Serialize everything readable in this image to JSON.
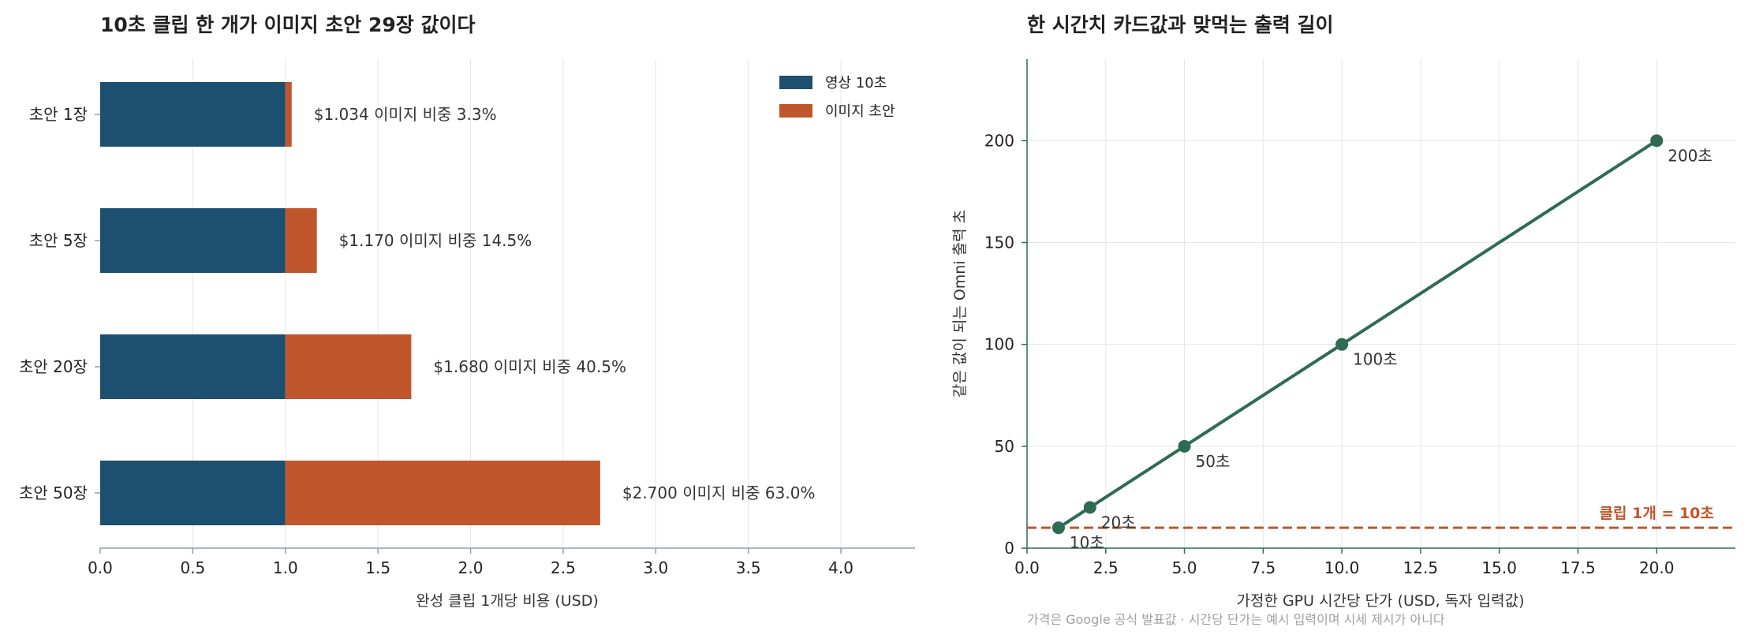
{
  "colors": {
    "video": "#1d4f70",
    "image": "#c0562b",
    "line": "#2e6b52",
    "grid": "#e6e6e6",
    "axis": "#8aa0b0",
    "reference": "#c0562b"
  },
  "chart_data": [
    {
      "type": "bar",
      "orientation": "horizontal",
      "stacked": true,
      "title": "10초 클립 한 개가 이미지 초안 29장 값이다",
      "xlabel": "완성 클립 1개당 비용 (USD)",
      "ylabel": "",
      "xlim": [
        0,
        4.4
      ],
      "xticks": [
        "0.0",
        "0.5",
        "1.0",
        "1.5",
        "2.0",
        "2.5",
        "3.0",
        "3.5",
        "4.0"
      ],
      "categories": [
        "초안 1장",
        "초안 5장",
        "초안 20장",
        "초안 50장"
      ],
      "series": [
        {
          "name": "영상 10초",
          "values": [
            1.0,
            1.0,
            1.0,
            1.0
          ]
        },
        {
          "name": "이미지 초안",
          "values": [
            0.034,
            0.17,
            0.68,
            1.7
          ]
        }
      ],
      "value_labels": [
        "$1.034   이미지 비중 3.3%",
        "$1.170   이미지 비중 14.5%",
        "$1.680   이미지 비중 40.5%",
        "$2.700   이미지 비중 63.0%"
      ],
      "totals": [
        1.034,
        1.17,
        1.68,
        2.7
      ],
      "legend_position": "top-right",
      "grid": "x"
    },
    {
      "type": "line",
      "title": "한 시간치 카드값과 맞먹는 출력 길이",
      "xlabel": "가정한 GPU 시간당 단가 (USD, 독자 입력값)",
      "ylabel": "같은 값이 되는 Omni 출력 초",
      "xlim": [
        0,
        22.5
      ],
      "ylim": [
        0,
        240
      ],
      "xticks": [
        "0.0",
        "2.5",
        "5.0",
        "7.5",
        "10.0",
        "12.5",
        "15.0",
        "17.5",
        "20.0"
      ],
      "yticks": [
        "0",
        "50",
        "100",
        "150",
        "200"
      ],
      "series": [
        {
          "x": [
            1,
            2,
            5,
            10,
            20
          ],
          "y": [
            10,
            20,
            50,
            100,
            200
          ],
          "point_labels": [
            "10초",
            "20초",
            "50초",
            "100초",
            "200초"
          ]
        }
      ],
      "reference_line": {
        "y": 10,
        "label": "클립 1개 = 10초"
      },
      "grid": "both"
    }
  ],
  "footnote": "가격은 Google 공식 발표값 · 시간당 단가는 예시 입력이며 시세 제시가 아니다"
}
